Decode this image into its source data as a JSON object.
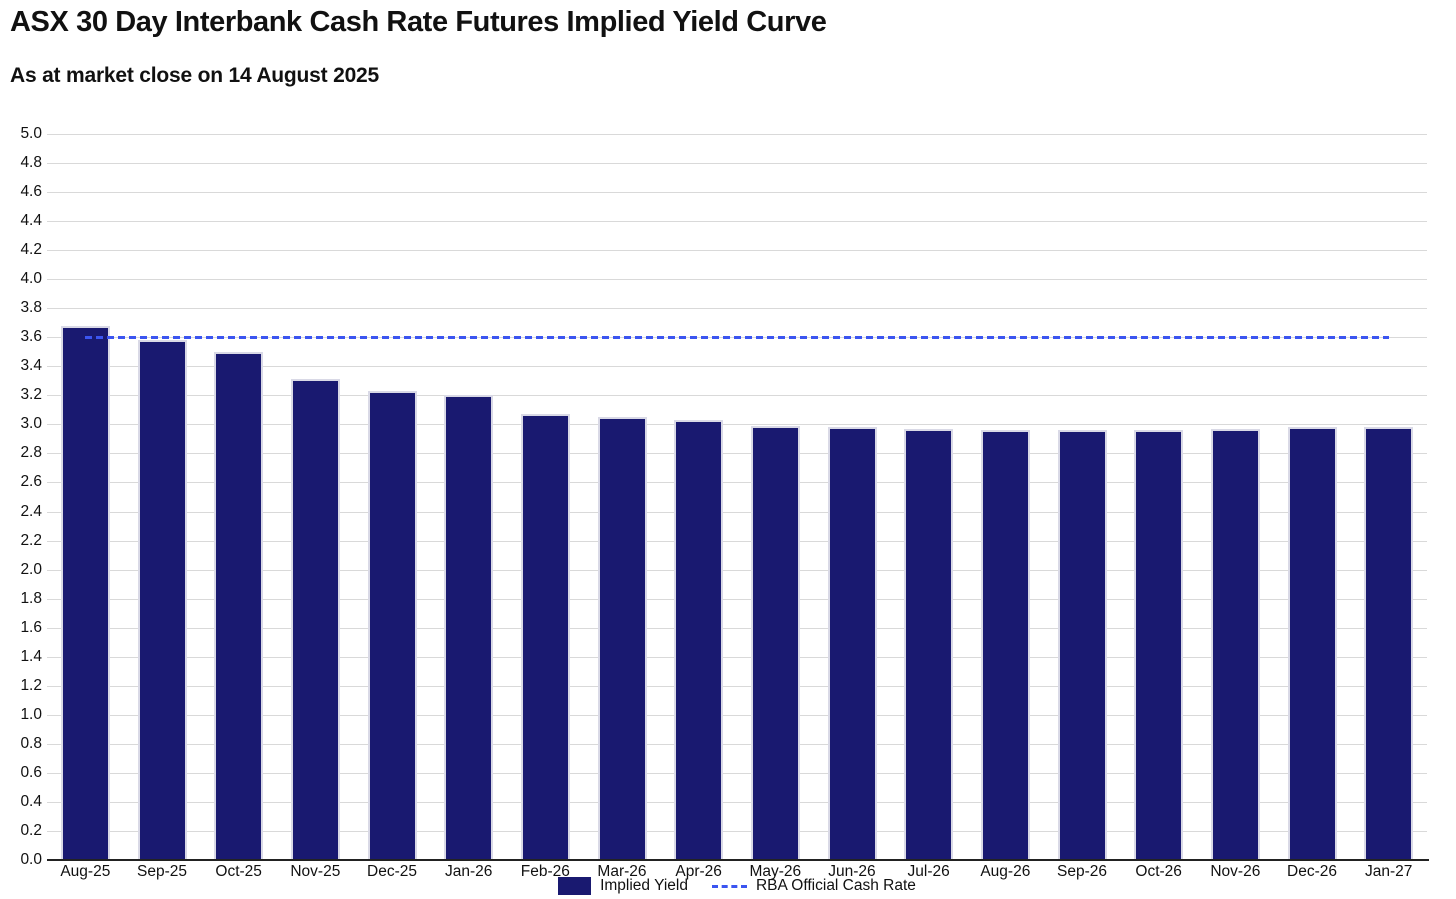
{
  "title": "ASX 30 Day Interbank Cash Rate Futures Implied Yield Curve",
  "subtitle": "As at market close on 14 August 2025",
  "legend": {
    "implied_yield_label": "Implied Yield",
    "rba_label": "RBA Official Cash Rate"
  },
  "colors": {
    "bar_fill": "#191970",
    "bar_border": "#d9d9e6",
    "rba_line": "#3b55f0",
    "gridline": "#d9d9d9",
    "axis_line": "#222222",
    "text": "#111111"
  },
  "chart_data": {
    "type": "bar",
    "title": "ASX 30 Day Interbank Cash Rate Futures Implied Yield Curve",
    "subtitle": "As at market close on 14 August 2025",
    "xlabel": "",
    "ylabel": "",
    "ylim": [
      0.0,
      5.0
    ],
    "ytick_step": 0.2,
    "grid": true,
    "legend_position": "bottom-center",
    "categories": [
      "Aug-25",
      "Sep-25",
      "Oct-25",
      "Nov-25",
      "Dec-25",
      "Jan-26",
      "Feb-26",
      "Mar-26",
      "Apr-26",
      "May-26",
      "Jun-26",
      "Jul-26",
      "Aug-26",
      "Sep-26",
      "Oct-26",
      "Nov-26",
      "Dec-26",
      "Jan-27"
    ],
    "series": [
      {
        "name": "Implied Yield",
        "type": "bar",
        "values": [
          3.68,
          3.58,
          3.5,
          3.31,
          3.23,
          3.2,
          3.07,
          3.05,
          3.03,
          2.99,
          2.98,
          2.97,
          2.96,
          2.96,
          2.96,
          2.97,
          2.98,
          2.98
        ]
      },
      {
        "name": "RBA Official Cash Rate",
        "type": "dashed-line",
        "value": 3.6
      }
    ]
  }
}
